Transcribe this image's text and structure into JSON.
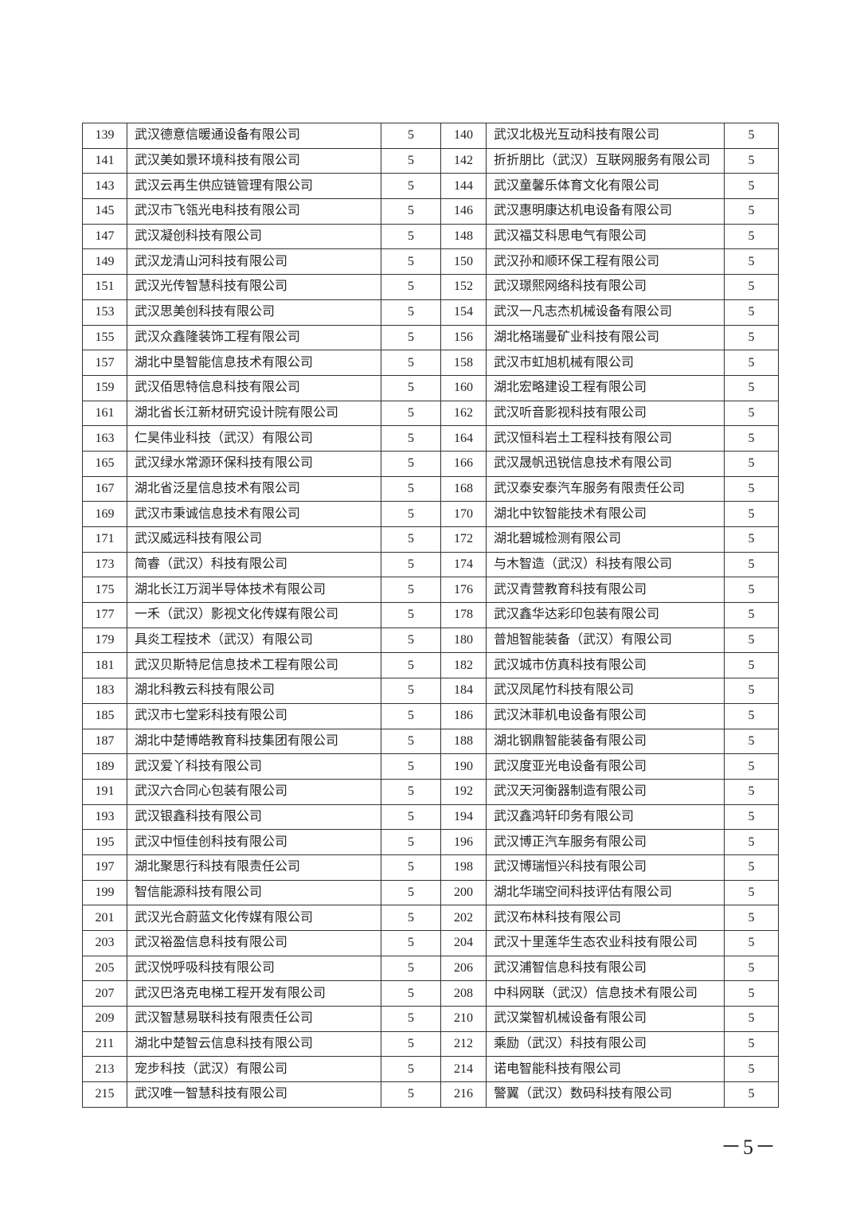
{
  "table": {
    "rows": [
      [
        "139",
        "武汉德意信暖通设备有限公司",
        "5",
        "140",
        "武汉北极光互动科技有限公司",
        "5"
      ],
      [
        "141",
        "武汉美如景环境科技有限公司",
        "5",
        "142",
        "折折朋比（武汉）互联网服务有限公司",
        "5"
      ],
      [
        "143",
        "武汉云再生供应链管理有限公司",
        "5",
        "144",
        "武汉童馨乐体育文化有限公司",
        "5"
      ],
      [
        "145",
        "武汉市飞瓴光电科技有限公司",
        "5",
        "146",
        "武汉惠明康达机电设备有限公司",
        "5"
      ],
      [
        "147",
        "武汉凝创科技有限公司",
        "5",
        "148",
        "武汉福艾科思电气有限公司",
        "5"
      ],
      [
        "149",
        "武汉龙清山河科技有限公司",
        "5",
        "150",
        "武汉孙和顺环保工程有限公司",
        "5"
      ],
      [
        "151",
        "武汉光传智慧科技有限公司",
        "5",
        "152",
        "武汉璟熙网络科技有限公司",
        "5"
      ],
      [
        "153",
        "武汉思美创科技有限公司",
        "5",
        "154",
        "武汉一凡志杰机械设备有限公司",
        "5"
      ],
      [
        "155",
        "武汉众鑫隆装饰工程有限公司",
        "5",
        "156",
        "湖北格瑞曼矿业科技有限公司",
        "5"
      ],
      [
        "157",
        "湖北中垦智能信息技术有限公司",
        "5",
        "158",
        "武汉市虹旭机械有限公司",
        "5"
      ],
      [
        "159",
        "武汉佰思特信息科技有限公司",
        "5",
        "160",
        "湖北宏略建设工程有限公司",
        "5"
      ],
      [
        "161",
        "湖北省长江新材研究设计院有限公司",
        "5",
        "162",
        "武汉听音影视科技有限公司",
        "5"
      ],
      [
        "163",
        "仁昊伟业科技（武汉）有限公司",
        "5",
        "164",
        "武汉恒科岩土工程科技有限公司",
        "5"
      ],
      [
        "165",
        "武汉绿水常源环保科技有限公司",
        "5",
        "166",
        "武汉晟帆迅锐信息技术有限公司",
        "5"
      ],
      [
        "167",
        "湖北省泛星信息技术有限公司",
        "5",
        "168",
        "武汉泰安泰汽车服务有限责任公司",
        "5"
      ],
      [
        "169",
        "武汉市秉诚信息技术有限公司",
        "5",
        "170",
        "湖北中钦智能技术有限公司",
        "5"
      ],
      [
        "171",
        "武汉威远科技有限公司",
        "5",
        "172",
        "湖北碧城检测有限公司",
        "5"
      ],
      [
        "173",
        "简睿（武汉）科技有限公司",
        "5",
        "174",
        "与木智造（武汉）科技有限公司",
        "5"
      ],
      [
        "175",
        "湖北长江万润半导体技术有限公司",
        "5",
        "176",
        "武汉青营教育科技有限公司",
        "5"
      ],
      [
        "177",
        "一禾（武汉）影视文化传媒有限公司",
        "5",
        "178",
        "武汉鑫华达彩印包装有限公司",
        "5"
      ],
      [
        "179",
        "具炎工程技术（武汉）有限公司",
        "5",
        "180",
        "普旭智能装备（武汉）有限公司",
        "5"
      ],
      [
        "181",
        "武汉贝斯特尼信息技术工程有限公司",
        "5",
        "182",
        "武汉城市仿真科技有限公司",
        "5"
      ],
      [
        "183",
        "湖北科教云科技有限公司",
        "5",
        "184",
        "武汉凤尾竹科技有限公司",
        "5"
      ],
      [
        "185",
        "武汉市七堂彩科技有限公司",
        "5",
        "186",
        "武汉沐菲机电设备有限公司",
        "5"
      ],
      [
        "187",
        "湖北中楚博皓教育科技集团有限公司",
        "5",
        "188",
        "湖北钢鼎智能装备有限公司",
        "5"
      ],
      [
        "189",
        "武汉爱丫科技有限公司",
        "5",
        "190",
        "武汉度亚光电设备有限公司",
        "5"
      ],
      [
        "191",
        "武汉六合同心包装有限公司",
        "5",
        "192",
        "武汉天河衡器制造有限公司",
        "5"
      ],
      [
        "193",
        "武汉银鑫科技有限公司",
        "5",
        "194",
        "武汉鑫鸿轩印务有限公司",
        "5"
      ],
      [
        "195",
        "武汉中恒佳创科技有限公司",
        "5",
        "196",
        "武汉博正汽车服务有限公司",
        "5"
      ],
      [
        "197",
        "湖北聚思行科技有限责任公司",
        "5",
        "198",
        "武汉博瑞恒兴科技有限公司",
        "5"
      ],
      [
        "199",
        "智信能源科技有限公司",
        "5",
        "200",
        "湖北华瑞空间科技评估有限公司",
        "5"
      ],
      [
        "201",
        "武汉光合蔚蓝文化传媒有限公司",
        "5",
        "202",
        "武汉布林科技有限公司",
        "5"
      ],
      [
        "203",
        "武汉裕盈信息科技有限公司",
        "5",
        "204",
        "武汉十里莲华生态农业科技有限公司",
        "5"
      ],
      [
        "205",
        "武汉悦呼吸科技有限公司",
        "5",
        "206",
        "武汉浦智信息科技有限公司",
        "5"
      ],
      [
        "207",
        "武汉巴洛克电梯工程开发有限公司",
        "5",
        "208",
        "中科网联（武汉）信息技术有限公司",
        "5"
      ],
      [
        "209",
        "武汉智慧易联科技有限责任公司",
        "5",
        "210",
        "武汉棠智机械设备有限公司",
        "5"
      ],
      [
        "211",
        "湖北中楚智云信息科技有限公司",
        "5",
        "212",
        "乘励（武汉）科技有限公司",
        "5"
      ],
      [
        "213",
        "宠步科技（武汉）有限公司",
        "5",
        "214",
        "诺电智能科技有限公司",
        "5"
      ],
      [
        "215",
        "武汉唯一智慧科技有限公司",
        "5",
        "216",
        "警翼（武汉）数码科技有限公司",
        "5"
      ]
    ]
  },
  "footer": {
    "page_number": "－5－"
  }
}
